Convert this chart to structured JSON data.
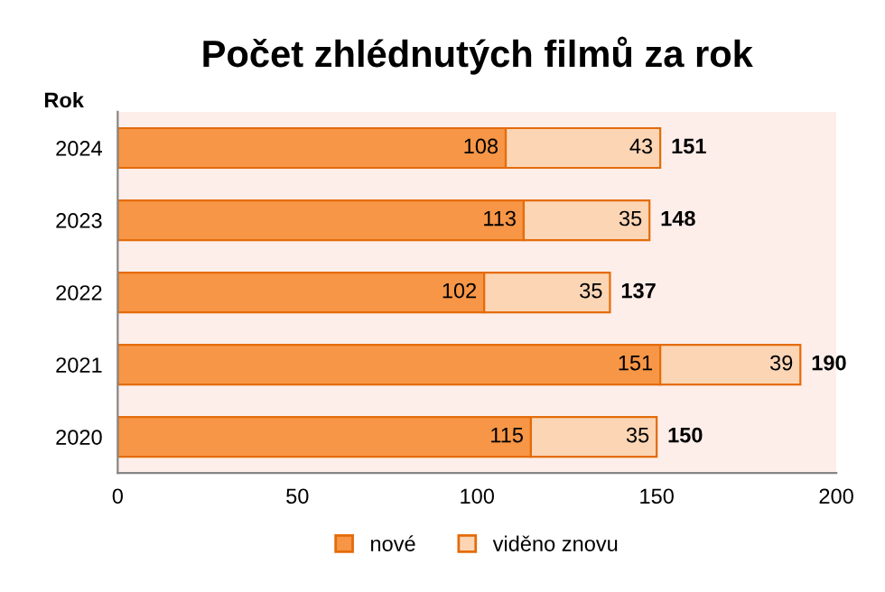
{
  "chart_data": {
    "type": "bar",
    "orientation": "horizontal",
    "stacked": true,
    "title": "Počet zhlédnutých filmů za rok",
    "ylabel": "Rok",
    "categories": [
      "2024",
      "2023",
      "2022",
      "2021",
      "2020"
    ],
    "series": [
      {
        "name": "nové",
        "color": "#f79646",
        "values": [
          108,
          113,
          102,
          151,
          115
        ]
      },
      {
        "name": "viděno znovu",
        "color": "#fcd5b5",
        "values": [
          43,
          35,
          35,
          39,
          35
        ]
      }
    ],
    "totals": [
      "151",
      "148",
      "137",
      "190",
      "150"
    ],
    "data_labels": true,
    "xlim": [
      0,
      200
    ],
    "xticks": [
      0,
      50,
      100,
      150,
      200
    ],
    "grid": false,
    "legend": "bottom"
  }
}
